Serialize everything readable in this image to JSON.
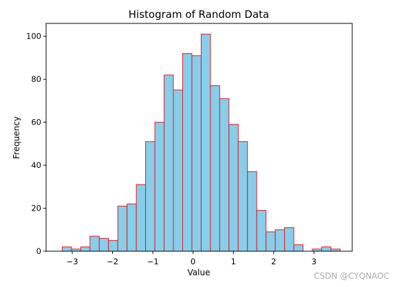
{
  "chart_data": {
    "type": "bar",
    "title": "Histogram of Random Data",
    "xlabel": "Value",
    "ylabel": "Frequency",
    "xlim": [
      -3.65,
      3.95
    ],
    "ylim": [
      0,
      106
    ],
    "bin_edges": [
      -3.25,
      -3.02,
      -2.79,
      -2.56,
      -2.33,
      -2.1,
      -1.87,
      -1.64,
      -1.41,
      -1.18,
      -0.95,
      -0.72,
      -0.49,
      -0.26,
      -0.03,
      0.2,
      0.43,
      0.66,
      0.89,
      1.12,
      1.35,
      1.58,
      1.81,
      2.04,
      2.27,
      2.5,
      2.73,
      2.96,
      3.19,
      3.42
    ],
    "values": [
      2,
      1,
      2,
      7,
      6,
      5,
      21,
      22,
      31,
      51,
      60,
      82,
      75,
      92,
      91,
      101,
      77,
      71,
      59,
      51,
      37,
      19,
      9,
      10,
      11,
      3,
      0,
      1,
      2,
      1
    ],
    "x_ticks": [
      -3,
      -2,
      -1,
      0,
      1,
      2,
      3
    ],
    "x_tick_labels": [
      "−3",
      "−2",
      "−1",
      "0",
      "1",
      "2",
      "3"
    ],
    "y_ticks": [
      0,
      20,
      40,
      60,
      80,
      100
    ],
    "y_tick_labels": [
      "0",
      "20",
      "40",
      "60",
      "80",
      "100"
    ],
    "grid": false,
    "colors": {
      "bar_fill": "#87ceeb",
      "bar_edge": "#e31a1c"
    }
  },
  "watermark": "CSDN @CYQNAOC"
}
